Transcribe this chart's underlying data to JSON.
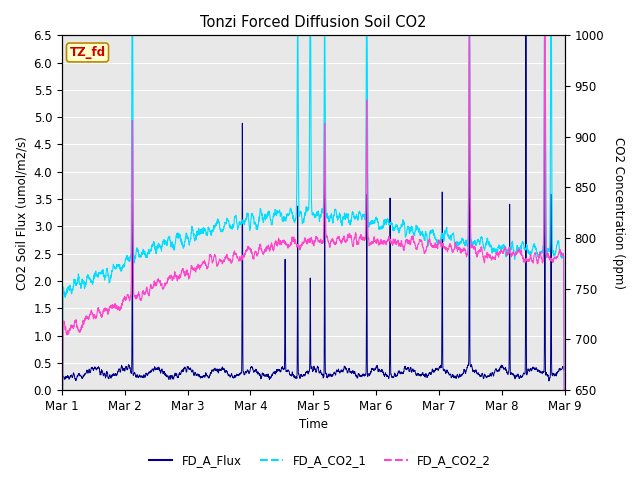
{
  "title": "Tonzi Forced Diffusion Soil CO2",
  "xlabel": "Time",
  "ylabel_left": "CO2 Soil Flux (umol/m2/s)",
  "ylabel_right": "CO2 Concentration (ppm)",
  "ylim_left": [
    0.0,
    6.5
  ],
  "ylim_right": [
    650,
    1000
  ],
  "annotation_text": "TZ_fd",
  "annotation_bg": "#ffffcc",
  "annotation_border": "#bb8800",
  "annotation_text_color": "#cc0000",
  "flux_color": "#000088",
  "co2_1_color": "#00ddff",
  "co2_2_color": "#ff44cc",
  "legend_labels": [
    "FD_A_Flux",
    "FD_A_CO2_1",
    "FD_A_CO2_2"
  ],
  "n_days": 8,
  "n_points": 3000,
  "xtick_labels": [
    "Mar 1",
    "Mar 2",
    "Mar 3",
    "Mar 4",
    "Mar 5",
    "Mar 6",
    "Mar 7",
    "Mar 8",
    "Mar 9"
  ],
  "yticks_left": [
    0.0,
    0.5,
    1.0,
    1.5,
    2.0,
    2.5,
    3.0,
    3.5,
    4.0,
    4.5,
    5.0,
    5.5,
    6.0,
    6.5
  ],
  "yticks_right": [
    650,
    700,
    750,
    800,
    850,
    900,
    950,
    1000
  ],
  "background_color": "#e8e8e8",
  "grid_color": "#ffffff",
  "fig_bg": "#ffffff"
}
